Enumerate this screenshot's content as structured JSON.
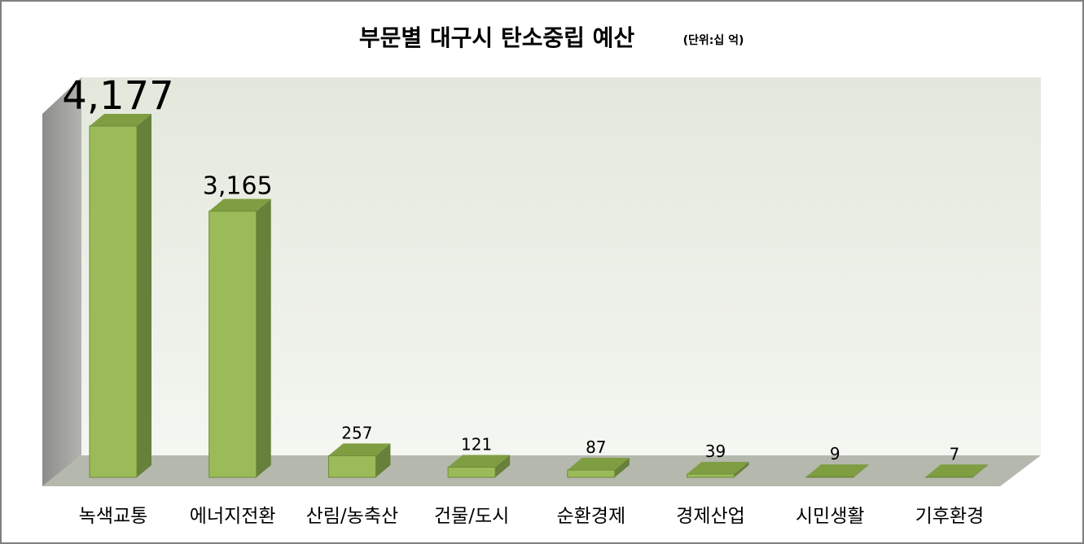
{
  "chart_data": {
    "type": "bar3d",
    "title": "부문별 대구시 탄소중립 예산",
    "subtitle": "(단위:십 억)",
    "categories": [
      "녹색교통",
      "에너지전환",
      "산림/농축산",
      "건물/도시",
      "순환경제",
      "경제산업",
      "시민생활",
      "기후환경"
    ],
    "values": [
      4177,
      3165,
      257,
      121,
      87,
      39,
      9,
      7
    ],
    "value_labels": [
      "4,177",
      "3,165",
      "257",
      "121",
      "87",
      "39",
      "9",
      "7"
    ],
    "color": "#9bbb59"
  }
}
